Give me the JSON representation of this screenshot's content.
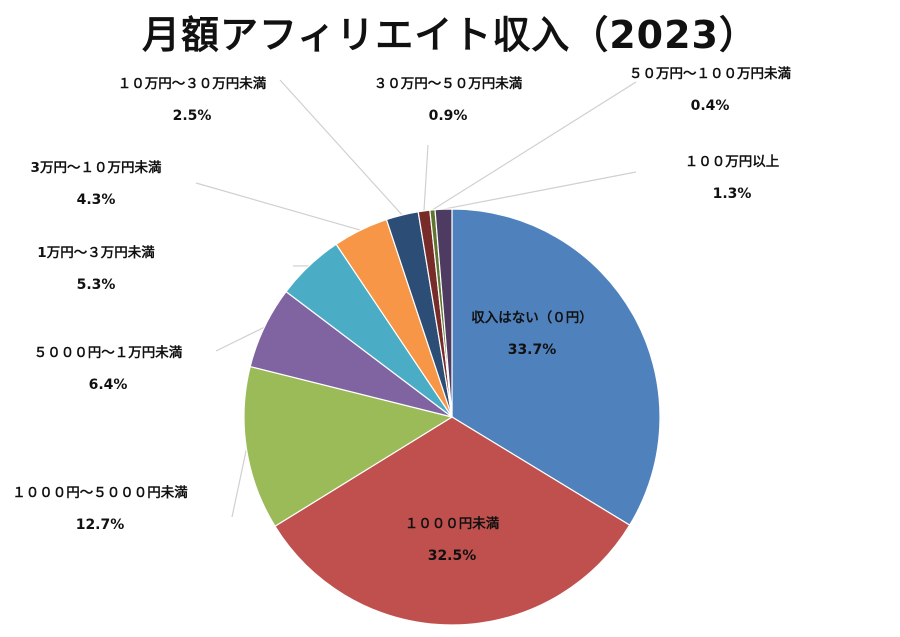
{
  "chart_data": {
    "type": "pie",
    "title": "月額アフィリエイト収入（2023）",
    "start_angle_deg": 0,
    "direction": "clockwise",
    "slices": [
      {
        "label": "収入はない（０円）",
        "value": 33.7,
        "display": "33.7%",
        "color": "#4f81bd"
      },
      {
        "label": "１０００円未満",
        "value": 32.5,
        "display": "32.5%",
        "color": "#c0504d"
      },
      {
        "label": "１０００円～５０００円未満",
        "value": 12.7,
        "display": "12.7%",
        "color": "#9bbb59"
      },
      {
        "label": "５０００円～１万円未満",
        "value": 6.4,
        "display": "6.4%",
        "color": "#8064a2"
      },
      {
        "label": "1万円～３万円未満",
        "value": 5.3,
        "display": "5.3%",
        "color": "#4bacc6"
      },
      {
        "label": "3万円～１０万円未満",
        "value": 4.3,
        "display": "4.3%",
        "color": "#f79646"
      },
      {
        "label": "１０万円～３０万円未満",
        "value": 2.5,
        "display": "2.5%",
        "color": "#2c4d75"
      },
      {
        "label": "３０万円～５０万円未満",
        "value": 0.9,
        "display": "0.9%",
        "color": "#772c2a"
      },
      {
        "label": "５０万円～１００万円未満",
        "value": 0.4,
        "display": "0.4%",
        "color": "#5f7530"
      },
      {
        "label": "１００万円以上",
        "value": 1.3,
        "display": "1.3%",
        "color": "#4d3b62"
      }
    ]
  }
}
